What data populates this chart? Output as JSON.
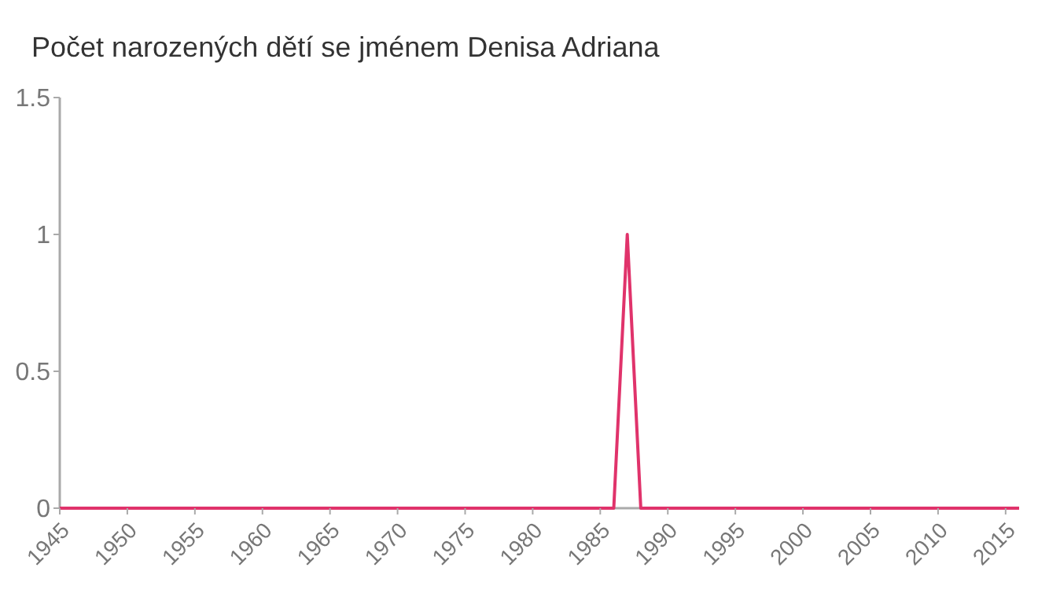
{
  "chart_data": {
    "type": "line",
    "title": "Počet narozených dětí se jménem Denisa Adriana",
    "x": [
      1945,
      1946,
      1947,
      1948,
      1949,
      1950,
      1951,
      1952,
      1953,
      1954,
      1955,
      1956,
      1957,
      1958,
      1959,
      1960,
      1961,
      1962,
      1963,
      1964,
      1965,
      1966,
      1967,
      1968,
      1969,
      1970,
      1971,
      1972,
      1973,
      1974,
      1975,
      1976,
      1977,
      1978,
      1979,
      1980,
      1981,
      1982,
      1983,
      1984,
      1985,
      1986,
      1987,
      1988,
      1989,
      1990,
      1991,
      1992,
      1993,
      1994,
      1995,
      1996,
      1997,
      1998,
      1999,
      2000,
      2001,
      2002,
      2003,
      2004,
      2005,
      2006,
      2007,
      2008,
      2009,
      2010,
      2011,
      2012,
      2013,
      2014,
      2015,
      2016
    ],
    "series": [
      {
        "color": "#e0336b",
        "values": [
          0,
          0,
          0,
          0,
          0,
          0,
          0,
          0,
          0,
          0,
          0,
          0,
          0,
          0,
          0,
          0,
          0,
          0,
          0,
          0,
          0,
          0,
          0,
          0,
          0,
          0,
          0,
          0,
          0,
          0,
          0,
          0,
          0,
          0,
          0,
          0,
          0,
          0,
          0,
          0,
          0,
          0,
          1,
          0,
          0,
          0,
          0,
          0,
          0,
          0,
          0,
          0,
          0,
          0,
          0,
          0,
          0,
          0,
          0,
          0,
          0,
          0,
          0,
          0,
          0,
          0,
          0,
          0,
          0,
          0,
          0,
          0
        ]
      }
    ],
    "xlim": [
      1945,
      2016
    ],
    "xticks": [
      1945,
      1950,
      1955,
      1960,
      1965,
      1970,
      1975,
      1980,
      1985,
      1990,
      1995,
      2000,
      2005,
      2010,
      2015
    ],
    "ylim": [
      0,
      1.5
    ],
    "yticks": [
      0,
      0.5,
      1,
      1.5
    ],
    "grid": false,
    "marker": "none",
    "line_style": "solid"
  }
}
